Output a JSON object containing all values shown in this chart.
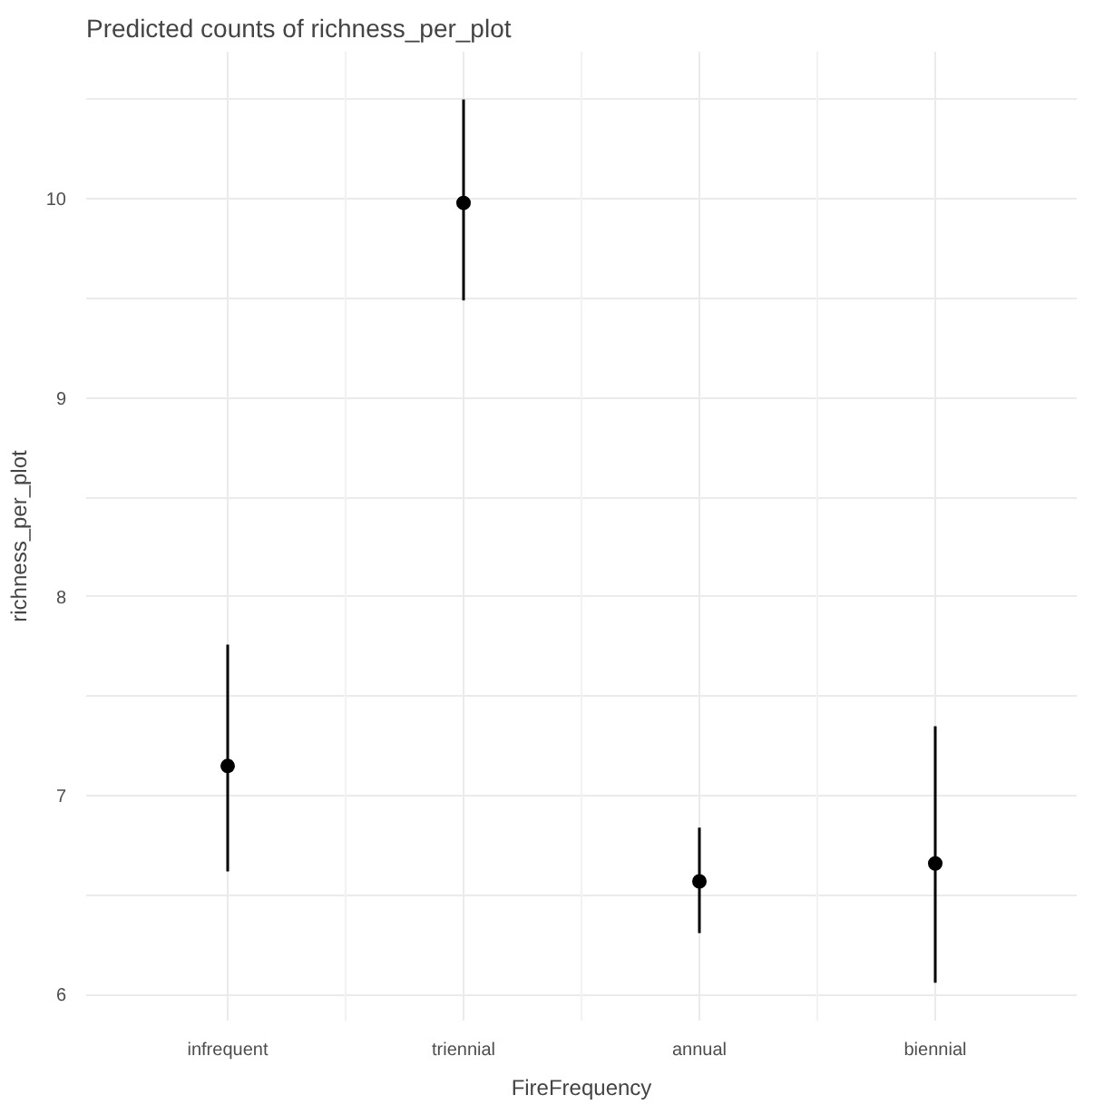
{
  "chart_data": {
    "type": "scatter",
    "title": "Predicted counts of richness_per_plot",
    "xlabel": "FireFrequency",
    "ylabel": "richness_per_plot",
    "categories": [
      "infrequent",
      "triennial",
      "annual",
      "biennial"
    ],
    "values": [
      7.15,
      9.98,
      6.57,
      6.66
    ],
    "errors": [
      [
        6.62,
        7.76
      ],
      [
        9.49,
        10.5
      ],
      [
        6.31,
        6.84
      ],
      [
        6.06,
        7.35
      ]
    ],
    "color": "#000000",
    "marker": "circle",
    "ylim": [
      5.87,
      10.74
    ],
    "yticks": [
      6,
      {
        "value": 6.5,
        "label": null
      },
      7,
      {
        "value": 7.5,
        "label": null
      },
      8,
      {
        "value": 8.5,
        "label": null
      },
      9,
      {
        "value": 9.5,
        "label": null
      },
      10,
      {
        "value": 10.5,
        "label": null
      }
    ],
    "grid": true
  }
}
